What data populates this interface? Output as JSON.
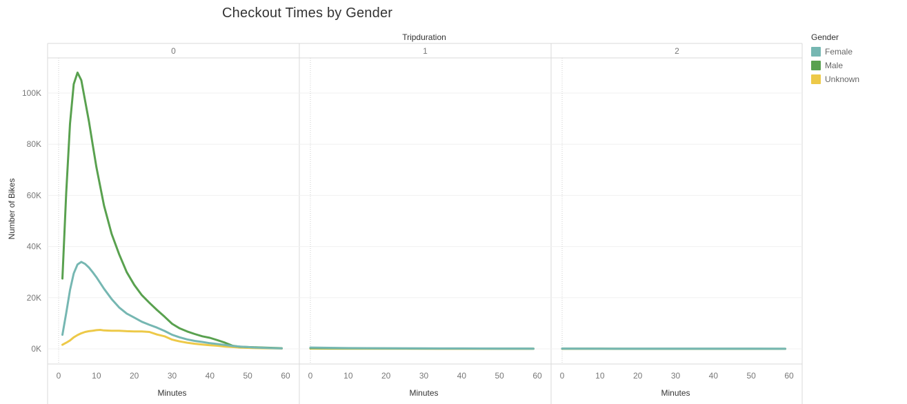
{
  "chart_data": {
    "type": "line",
    "title": "Checkout Times by Gender",
    "column_header_title": "Tripduration",
    "panels": [
      "0",
      "1",
      "2"
    ],
    "xlabel": "Minutes",
    "ylabel": "Number of Bikes",
    "xlim": [
      -2,
      62
    ],
    "ylim": [
      -3000,
      115000
    ],
    "x_ticks": [
      0,
      10,
      20,
      30,
      40,
      50,
      60
    ],
    "y_ticks": [
      {
        "value": 0,
        "label": "0K"
      },
      {
        "value": 20000,
        "label": "20K"
      },
      {
        "value": 40000,
        "label": "40K"
      },
      {
        "value": 60000,
        "label": "60K"
      },
      {
        "value": 80000,
        "label": "80K"
      },
      {
        "value": 100000,
        "label": "100K"
      }
    ],
    "legend_title": "Gender",
    "legend_position": "right",
    "grid": true,
    "series": [
      {
        "name": "Female",
        "color": "#76b7b2",
        "panels": [
          {
            "x": [
              1,
              2,
              3,
              4,
              5,
              6,
              7,
              8,
              9,
              10,
              12,
              14,
              16,
              18,
              20,
              22,
              24,
              26,
              28,
              30,
              32,
              34,
              36,
              38,
              40,
              42,
              44,
              46,
              48,
              50,
              52,
              54,
              56,
              58,
              59
            ],
            "y": [
              5500,
              14000,
              23000,
              29500,
              33000,
              34000,
              33200,
              31800,
              30000,
              28000,
              23500,
              19500,
              16200,
              13800,
              12200,
              10600,
              9400,
              8300,
              7000,
              5500,
              4500,
              3700,
              3100,
              2700,
              2200,
              1900,
              1500,
              1100,
              900,
              700,
              500,
              400,
              300,
              200,
              150
            ]
          },
          {
            "x": [
              0,
              10,
              20,
              30,
              40,
              50,
              59
            ],
            "y": [
              500,
              300,
              250,
              200,
              150,
              100,
              80
            ]
          },
          {
            "x": [
              0,
              10,
              20,
              30,
              40,
              50,
              59
            ],
            "y": [
              100,
              80,
              80,
              60,
              60,
              50,
              40
            ]
          }
        ]
      },
      {
        "name": "Male",
        "color": "#59a14f",
        "panels": [
          {
            "x": [
              1,
              2,
              3,
              4,
              5,
              6,
              7,
              8,
              9,
              10,
              12,
              14,
              16,
              18,
              20,
              22,
              24,
              26,
              28,
              30,
              32,
              34,
              36,
              38,
              40,
              42,
              44,
              46,
              48,
              50,
              52,
              54,
              56,
              58,
              59
            ],
            "y": [
              27500,
              61000,
              88000,
              103500,
              108000,
              105000,
              97000,
              89000,
              80000,
              71000,
              56000,
              45000,
              37000,
              30000,
              25000,
              21000,
              18000,
              15200,
              12600,
              9800,
              8000,
              6800,
              5800,
              4900,
              4300,
              3400,
              2400,
              1200,
              800,
              700,
              600,
              500,
              400,
              300,
              250
            ]
          },
          {
            "x": [
              0,
              10,
              20,
              30,
              40,
              50,
              59
            ],
            "y": [
              300,
              200,
              150,
              120,
              100,
              80,
              60
            ]
          },
          {
            "x": [
              0,
              10,
              20,
              30,
              40,
              50,
              59
            ],
            "y": [
              60,
              50,
              40,
              40,
              30,
              30,
              20
            ]
          }
        ]
      },
      {
        "name": "Unknown",
        "color": "#edc948",
        "panels": [
          {
            "x": [
              1,
              2,
              3,
              4,
              5,
              6,
              7,
              8,
              9,
              10,
              11,
              12,
              14,
              16,
              18,
              20,
              22,
              24,
              26,
              28,
              30,
              32,
              34,
              36,
              38,
              40,
              42,
              44,
              46,
              48,
              50,
              52,
              54,
              56,
              58,
              59
            ],
            "y": [
              1600,
              2400,
              3300,
              4500,
              5400,
              6100,
              6600,
              6900,
              7100,
              7300,
              7400,
              7200,
              7100,
              7100,
              6900,
              6800,
              6800,
              6600,
              5600,
              4900,
              3600,
              2900,
              2400,
              2000,
              1700,
              1400,
              1200,
              900,
              700,
              500,
              400,
              300,
              250,
              200,
              150,
              100
            ]
          },
          {
            "x": [
              0,
              10,
              20,
              30,
              40,
              50,
              59
            ],
            "y": [
              100,
              80,
              60,
              50,
              40,
              30,
              20
            ]
          },
          {
            "x": [
              0,
              10,
              20,
              30,
              40,
              50,
              59
            ],
            "y": [
              20,
              15,
              10,
              10,
              10,
              10,
              5
            ]
          }
        ]
      }
    ]
  }
}
